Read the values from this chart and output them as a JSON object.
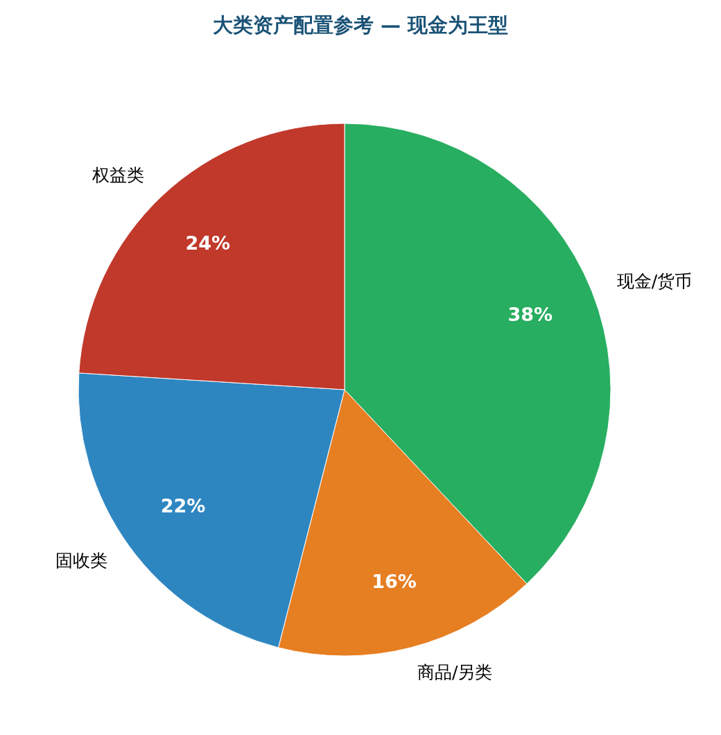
{
  "chart_data": {
    "type": "pie",
    "title": "大类资产配置参考 — 现金为王型",
    "categories": [
      "现金/货币",
      "商品/另类",
      "固收类",
      "权益类"
    ],
    "values": [
      38,
      16,
      22,
      24
    ],
    "colors": [
      "#27ae60",
      "#e67e22",
      "#2e86c1",
      "#c0392b"
    ],
    "value_labels": [
      "38%",
      "16%",
      "22%",
      "24%"
    ]
  }
}
